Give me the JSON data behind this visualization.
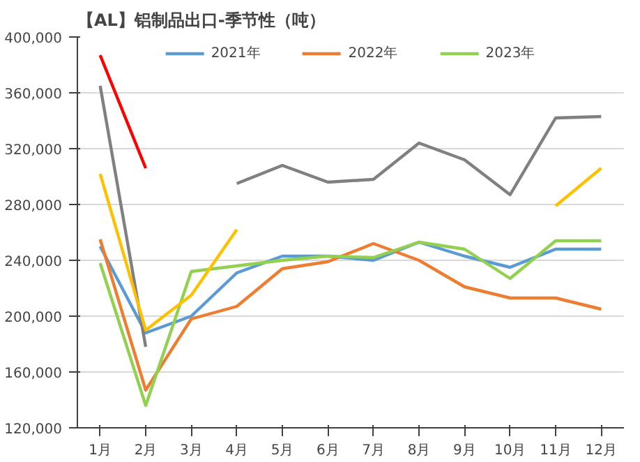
{
  "chart_data": {
    "type": "line",
    "title": "【AL】铝制品出口-季节性（吨）",
    "categories": [
      "1月",
      "2月",
      "3月",
      "4月",
      "5月",
      "6月",
      "7月",
      "8月",
      "9月",
      "10月",
      "11月",
      "12月"
    ],
    "series": [
      {
        "name": "2021年",
        "color": "#5b9bd5",
        "values": [
          250000,
          188000,
          200000,
          231000,
          243000,
          243000,
          240000,
          253000,
          243000,
          235000,
          248000,
          248000
        ]
      },
      {
        "name": "2022年",
        "color": "#ed7d31",
        "values": [
          255000,
          147000,
          198000,
          207000,
          234000,
          239000,
          252000,
          240000,
          221000,
          213000,
          213000,
          205000
        ]
      },
      {
        "name": "2023年",
        "color": "#92d050",
        "values": [
          238000,
          136000,
          232000,
          236000,
          240000,
          243000,
          242000,
          253000,
          248000,
          227000,
          254000,
          254000
        ]
      },
      {
        "color": "#808080",
        "values": [
          365000,
          178000,
          null,
          295000,
          308000,
          296000,
          298000,
          324000,
          312000,
          287000,
          342000,
          343000
        ]
      },
      {
        "color": "#ffc000",
        "values": [
          302000,
          190000,
          215000,
          262000,
          null,
          null,
          null,
          null,
          null,
          null,
          279000,
          306000
        ]
      },
      {
        "color": "#ff0000",
        "values": [
          387000,
          306000,
          null,
          null,
          null,
          null,
          null,
          null,
          null,
          null,
          null,
          null
        ]
      }
    ],
    "ylim": [
      120000,
      400000
    ],
    "yticks": [
      {
        "value": 120000,
        "label": "120,000"
      },
      {
        "value": 160000,
        "label": "160,000"
      },
      {
        "value": 200000,
        "label": "200,000"
      },
      {
        "value": 240000,
        "label": "240,000"
      },
      {
        "value": 280000,
        "label": "280,000"
      },
      {
        "value": 320000,
        "label": "320,000"
      },
      {
        "value": 360000,
        "label": "360,000"
      },
      {
        "value": 400000,
        "label": "400,000"
      }
    ],
    "grid": "y",
    "legend": "top",
    "marker": "none",
    "line_style": "solid"
  }
}
